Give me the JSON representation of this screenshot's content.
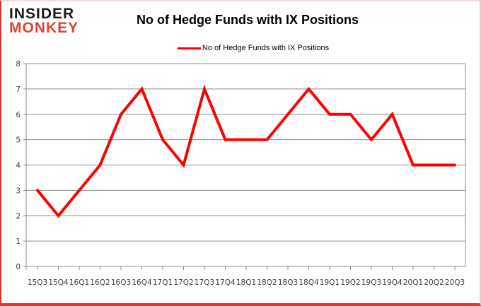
{
  "logo": {
    "line1": "INSIDER",
    "line2": "MONKEY"
  },
  "title": "No of Hedge Funds with IX Positions",
  "legend": {
    "label": "No of Hedge Funds with IX Positions"
  },
  "colors": {
    "line": "#FE0000",
    "grid": "#8C8C8C",
    "axis_text": "#3F3F3F",
    "logo_black": "#1A1A1A",
    "logo_red": "#DE4431",
    "frame_left": "#CE3A2E",
    "frame_bottom": "#E8352C",
    "frame_right": "#F5C6C1",
    "frame_top": "#F8DCD9"
  },
  "chart_data": {
    "type": "line",
    "title": "No of Hedge Funds with IX Positions",
    "categories": [
      "15Q3",
      "15Q4",
      "16Q1",
      "16Q2",
      "16Q3",
      "16Q4",
      "17Q1",
      "17Q2",
      "17Q3",
      "17Q4",
      "18Q1",
      "18Q2",
      "18Q3",
      "18Q4",
      "19Q1",
      "19Q2",
      "19Q3",
      "19Q4",
      "20Q1",
      "20Q2",
      "20Q3"
    ],
    "series": [
      {
        "name": "No of Hedge Funds with IX Positions",
        "color": "#FE0000",
        "values": [
          3,
          2,
          3,
          4,
          6,
          7,
          5,
          4,
          7,
          5,
          5,
          5,
          6,
          7,
          6,
          6,
          5,
          6,
          4,
          4,
          4
        ]
      }
    ],
    "xlabel": "",
    "ylabel": "",
    "ylim": [
      0,
      8
    ],
    "yticks": [
      0,
      1,
      2,
      3,
      4,
      5,
      6,
      7,
      8
    ],
    "grid": true,
    "legend_position": "top-center"
  }
}
